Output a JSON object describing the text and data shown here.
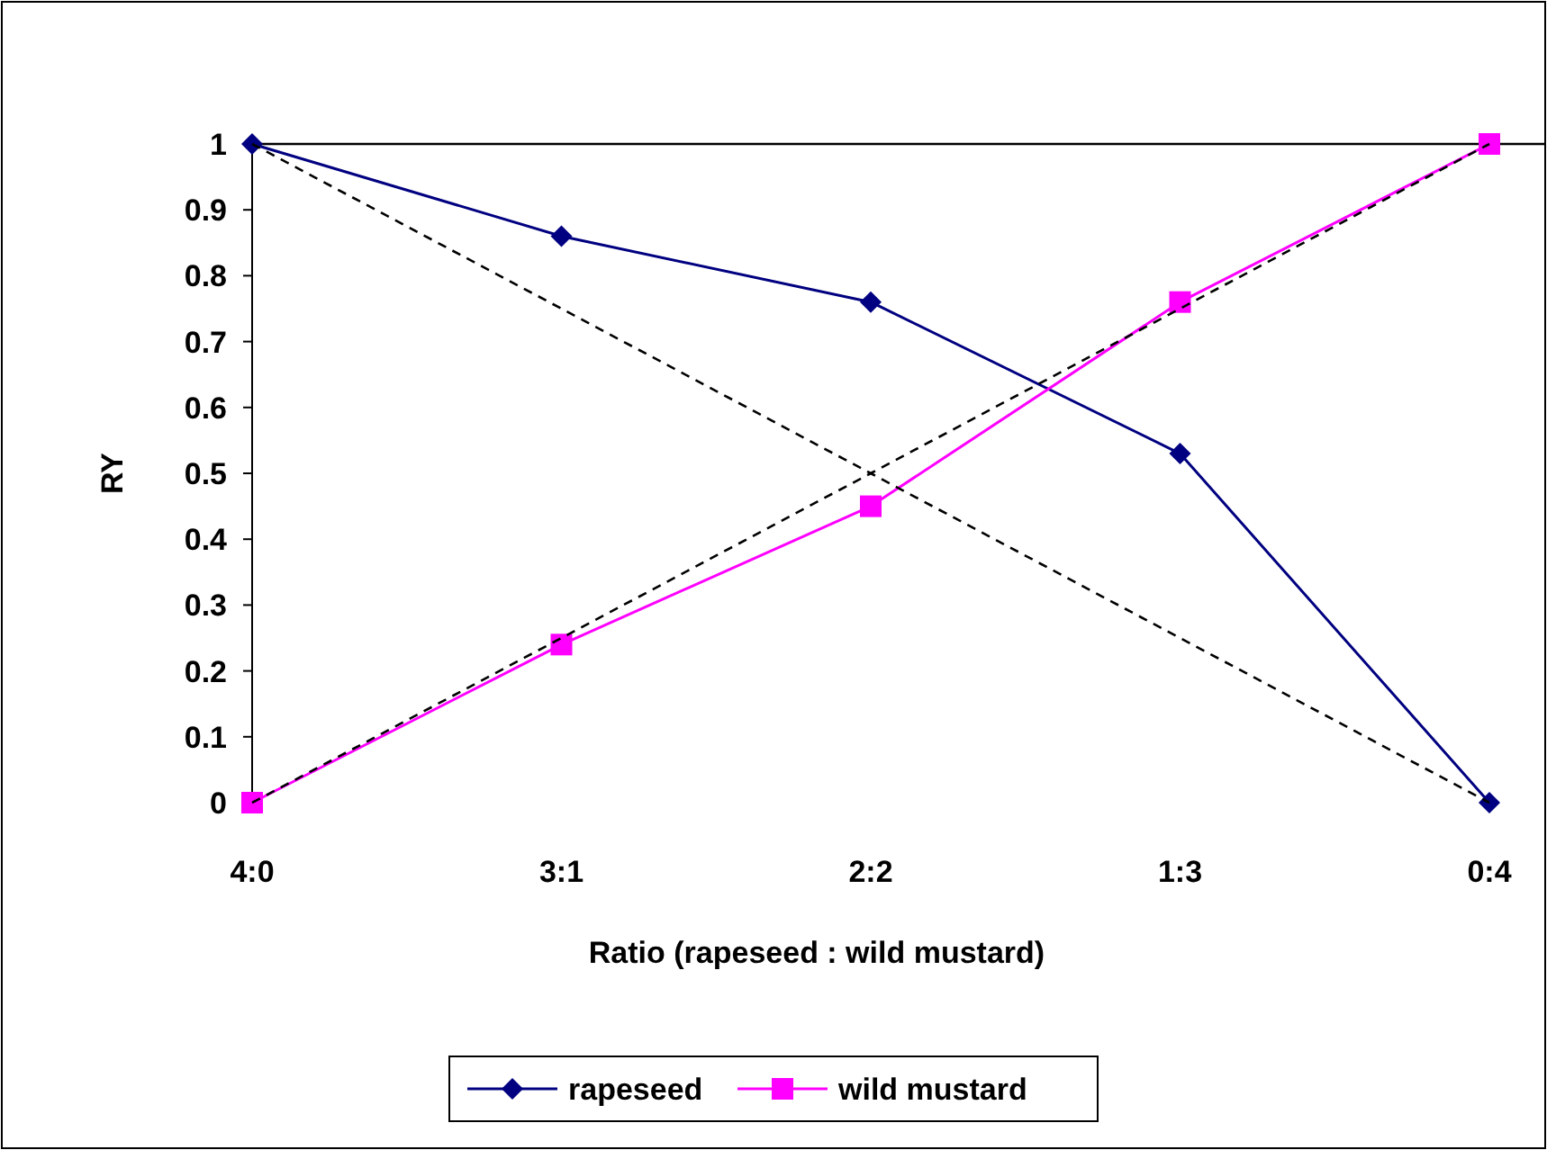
{
  "chart_data": {
    "type": "line",
    "xlabel": "Ratio (rapeseed : wild mustard)",
    "ylabel": "RY",
    "categories": [
      "4:0",
      "3:1",
      "2:2",
      "1:3",
      "0:4"
    ],
    "series": [
      {
        "name": "rapeseed",
        "color": "#000080",
        "marker": "diamond",
        "values": [
          1,
          0.86,
          0.76,
          0.53,
          0
        ]
      },
      {
        "name": "wild mustard",
        "color": "#ff00ff",
        "marker": "square",
        "values": [
          0,
          0.24,
          0.45,
          0.76,
          1
        ]
      },
      {
        "color": "#000000",
        "marker": "none",
        "line_style": "dashed",
        "values": [
          1,
          0.75,
          0.5,
          0.25,
          0
        ]
      },
      {
        "color": "#000000",
        "marker": "none",
        "line_style": "dashed",
        "values": [
          0,
          0.25,
          0.5,
          0.75,
          1
        ]
      }
    ],
    "ylim": [
      0,
      1
    ],
    "yticks": [
      0,
      0.1,
      0.2,
      0.3,
      0.4,
      0.5,
      0.6,
      0.7,
      0.8,
      0.9,
      1
    ],
    "ref_lines": [
      {
        "axis": "y",
        "value": 1,
        "color": "#000000"
      }
    ],
    "legend": "bottom",
    "grid": false
  }
}
